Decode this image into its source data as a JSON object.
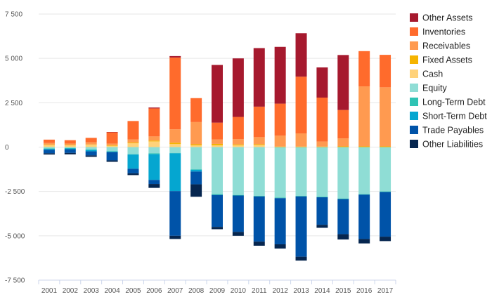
{
  "chart_data": {
    "type": "bar",
    "stacked": true,
    "categories": [
      "2001",
      "2002",
      "2003",
      "2004",
      "2005",
      "2006",
      "2007",
      "2008",
      "2009",
      "2010",
      "2011",
      "2012",
      "2013",
      "2014",
      "2015",
      "2016",
      "2017"
    ],
    "ylim": [
      -7500,
      7500
    ],
    "yticks": [
      -7500,
      -5000,
      -2500,
      0,
      2500,
      5000,
      7500
    ],
    "ytick_labels": [
      "-7 500",
      "-5 000",
      "-2 500",
      "0",
      "2 500",
      "5 000",
      "7 500"
    ],
    "grid": true,
    "legend_position": "right",
    "positive_series": [
      {
        "name": "Cash",
        "color": "#FFD27A",
        "values": [
          120,
          100,
          130,
          70,
          220,
          320,
          170,
          100,
          100,
          100,
          120,
          0,
          0,
          0,
          0,
          0,
          0
        ]
      },
      {
        "name": "Fixed Assets",
        "color": "#F5B400",
        "values": [
          20,
          20,
          20,
          30,
          40,
          50,
          80,
          60,
          80,
          50,
          40,
          30,
          30,
          30,
          40,
          40,
          40
        ]
      },
      {
        "name": "Receivables",
        "color": "#FF9A50",
        "values": [
          90,
          80,
          120,
          100,
          170,
          230,
          750,
          1250,
          250,
          300,
          400,
          620,
          740,
          280,
          450,
          3380,
          3330
        ]
      },
      {
        "name": "Inventories",
        "color": "#FF6B2C",
        "values": [
          190,
          190,
          250,
          630,
          1040,
          1580,
          4050,
          1350,
          950,
          1250,
          1720,
          1800,
          3200,
          2480,
          1600,
          1990,
          1830
        ]
      },
      {
        "name": "Other Assets",
        "color": "#A6192E",
        "values": [
          0,
          0,
          0,
          20,
          0,
          50,
          80,
          0,
          3250,
          3300,
          3300,
          3200,
          2450,
          1700,
          3100,
          0,
          0
        ]
      }
    ],
    "negative_series": [
      {
        "name": "Equity",
        "color": "#8FDDD5",
        "values": [
          -80,
          -60,
          -140,
          -230,
          -400,
          -350,
          -330,
          -1250,
          -2650,
          -2700,
          -2750,
          -2850,
          -2750,
          -2800,
          -2900,
          -2650,
          -2500
        ]
      },
      {
        "name": "Long-Term Debt",
        "color": "#2FC3B4",
        "values": [
          -20,
          -20,
          -20,
          -30,
          -20,
          -50,
          -20,
          -30,
          -50,
          -30,
          -30,
          -30,
          -30,
          -30,
          -30,
          -30,
          -30
        ]
      },
      {
        "name": "Short-Term Debt",
        "color": "#05A6D0",
        "values": [
          -50,
          -40,
          -80,
          -20,
          -800,
          -1450,
          -2130,
          -100,
          0,
          0,
          0,
          0,
          0,
          0,
          0,
          0,
          0
        ]
      },
      {
        "name": "Trade Payables",
        "color": "#0053A8",
        "values": [
          -200,
          -210,
          -230,
          -470,
          -260,
          -230,
          -2520,
          -720,
          -1800,
          -2050,
          -2550,
          -2600,
          -3400,
          -1550,
          -1980,
          -2500,
          -2520
        ]
      },
      {
        "name": "Other Liabilities",
        "color": "#06264F",
        "values": [
          -70,
          -80,
          -80,
          -80,
          -100,
          -220,
          -180,
          -700,
          -130,
          -220,
          -230,
          -240,
          -220,
          -170,
          -300,
          -250,
          -250
        ]
      }
    ],
    "legend": [
      {
        "label": "Other Assets",
        "color": "#A6192E"
      },
      {
        "label": "Inventories",
        "color": "#FF6B2C"
      },
      {
        "label": "Receivables",
        "color": "#FF9A50"
      },
      {
        "label": "Fixed Assets",
        "color": "#F5B400"
      },
      {
        "label": "Cash",
        "color": "#FFD27A"
      },
      {
        "label": "Equity",
        "color": "#8FDDD5"
      },
      {
        "label": "Long-Term Debt",
        "color": "#2FC3B4"
      },
      {
        "label": "Short-Term Debt",
        "color": "#05A6D0"
      },
      {
        "label": "Trade Payables",
        "color": "#0053A8"
      },
      {
        "label": "Other Liabilities",
        "color": "#06264F"
      }
    ]
  }
}
